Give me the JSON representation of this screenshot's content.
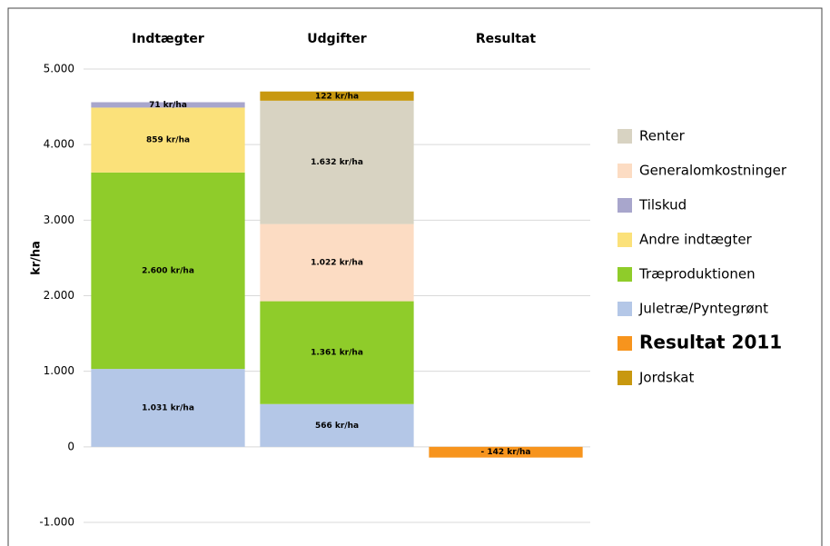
{
  "chart_data": {
    "type": "stacked_bar",
    "y_label": "kr/ha",
    "categories": [
      "Indtægter",
      "Udgifter",
      "Resultat"
    ],
    "series": [
      {
        "name": "Resultat 2011",
        "color": "#f7941d",
        "values": [
          null,
          null,
          -142
        ],
        "value_labels": [
          null,
          null,
          "- 142 kr/ha"
        ]
      },
      {
        "name": "Juletræ/Pyntegrønt",
        "color": "#b4c7e7",
        "values": [
          1031,
          566,
          null
        ],
        "value_labels": [
          "1.031 kr/ha",
          "566 kr/ha",
          null
        ]
      },
      {
        "name": "Træproduktionen",
        "color": "#8fcc2a",
        "values": [
          2600,
          1361,
          null
        ],
        "value_labels": [
          "2.600 kr/ha",
          "1.361 kr/ha",
          null
        ]
      },
      {
        "name": "Andre indtægter",
        "color": "#fbe17a",
        "values": [
          859,
          null,
          null
        ],
        "value_labels": [
          "859 kr/ha",
          null,
          null
        ]
      },
      {
        "name": "Tilskud",
        "color": "#a8a6cc",
        "values": [
          71,
          null,
          null
        ],
        "value_labels": [
          "71 kr/ha",
          null,
          null
        ]
      },
      {
        "name": "Generalomkostninger",
        "color": "#fcdcc3",
        "values": [
          null,
          1022,
          null
        ],
        "value_labels": [
          null,
          "1.022 kr/ha",
          null
        ]
      },
      {
        "name": "Renter",
        "color": "#d8d3c2",
        "values": [
          null,
          1632,
          null
        ],
        "value_labels": [
          null,
          "1.632 kr/ha",
          null
        ]
      },
      {
        "name": "Jordskat",
        "color": "#c8980f",
        "values": [
          null,
          122,
          null
        ],
        "value_labels": [
          null,
          "122 kr/ha",
          null
        ]
      }
    ],
    "ylim": [
      -1000,
      5000
    ],
    "yticks": [
      {
        "value": -1000,
        "label": "-1.000"
      },
      0,
      {
        "value": 1000,
        "label": "1.000"
      },
      {
        "value": 2000,
        "label": "2.000"
      },
      {
        "value": 3000,
        "label": "3.000"
      },
      {
        "value": 4000,
        "label": "4.000"
      },
      {
        "value": 5000,
        "label": "5.000"
      }
    ],
    "grid": true,
    "legend": "right"
  }
}
